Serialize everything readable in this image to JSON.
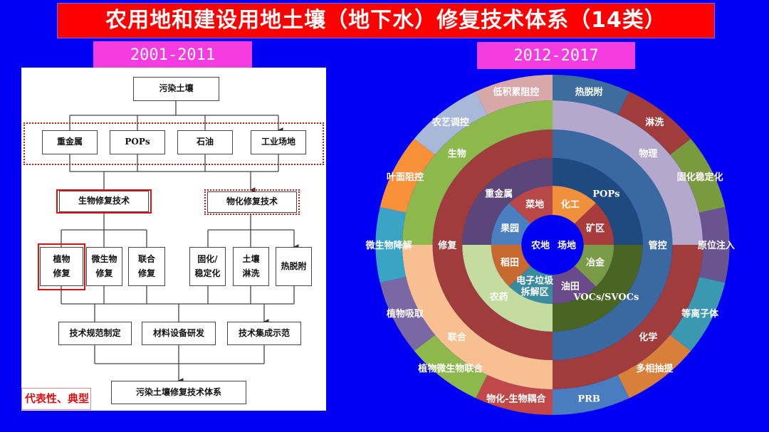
{
  "title": "农用地和建设用地土壤（地下水）修复技术体系（14类）",
  "left": {
    "period": "2001-2011",
    "root": "污染土壤",
    "pollutants": [
      "重金属",
      "POPs",
      "石油",
      "工业场地"
    ],
    "bio_tech": "生物修复技术",
    "physchem_tech": "物化修复技术",
    "bio_methods": [
      "植物\n修复",
      "微生物\n修复",
      "联合\n修复"
    ],
    "physchem_methods": [
      "固化/\n稳定化",
      "土壤\n淋洗",
      "热脱附"
    ],
    "outputs": [
      "技术规范制定",
      "材料设备研发",
      "技术集成示范"
    ],
    "final": "污染土壤修复技术体系",
    "note": "代表性、典型"
  },
  "right": {
    "period": "2012-2017",
    "center_labels": [
      "农地",
      "场地"
    ],
    "center_color": "#0000f2"
  },
  "chart_data": {
    "type": "sunburst",
    "order": "clockwise from top",
    "rings": [
      {
        "segments": [
          {
            "label": "化工",
            "color": "#f0903a"
          },
          {
            "label": "矿区",
            "color": "#a83c3c"
          },
          {
            "label": "冶金",
            "color": "#7a9a48"
          },
          {
            "label": "油田",
            "color": "#6a4a8a"
          },
          {
            "label": "电子垃圾\n拆解区",
            "color": "#3a8aa0"
          },
          {
            "label": "稻田",
            "color": "#c86a30"
          },
          {
            "label": "果园",
            "color": "#4a80c0"
          },
          {
            "label": "菜地",
            "color": "#b84848"
          }
        ]
      },
      {
        "segments": [
          {
            "label": "POPs",
            "color": "#1e4a80"
          },
          {
            "label": "VOCs/SVOCs",
            "color": "#4a6424"
          },
          {
            "label": "农药",
            "color": "#c4dca0",
            "text_color": "#1a1a1a"
          },
          {
            "label": "重金属",
            "color": "#5a4678"
          }
        ]
      },
      {
        "segments": [
          {
            "label": "管控",
            "color": "#3a68a0"
          },
          {
            "label": "修复",
            "color": "#a03c3c"
          }
        ]
      },
      {
        "segments": [
          {
            "label": "物理",
            "color": "#b4a8cc"
          },
          {
            "label": "化学",
            "color": "#a03c3c"
          },
          {
            "label": "联合",
            "color": "#f8c090",
            "text_color": "#1a1a1a"
          },
          {
            "label": "生物",
            "color": "#8cb84c"
          }
        ]
      },
      {
        "segments": [
          {
            "label": "热脱附",
            "color": "#3e6c9c"
          },
          {
            "label": "淋洗",
            "color": "#a03c3c"
          },
          {
            "label": "固化稳定化",
            "color": "#7a9a40"
          },
          {
            "label": "原位注入",
            "color": "#6a5490"
          },
          {
            "label": "等离子体",
            "color": "#3a98b0"
          },
          {
            "label": "多相抽提",
            "color": "#d8803a"
          },
          {
            "label": "PRB",
            "color": "#4a7cc0"
          },
          {
            "label": "物化-生物耦合",
            "color": "#c04848"
          },
          {
            "label": "植物微生物联合",
            "color": "#8cb84c"
          },
          {
            "label": "植物吸取",
            "color": "#7a68a4"
          },
          {
            "label": "微生物降解",
            "color": "#3aa4c4"
          },
          {
            "label": "叶面阻控",
            "color": "#f8903a"
          },
          {
            "label": "农艺调控",
            "color": "#a8b8d8"
          },
          {
            "label": "低积累阻控",
            "color": "#d8a8a8"
          }
        ]
      }
    ]
  }
}
